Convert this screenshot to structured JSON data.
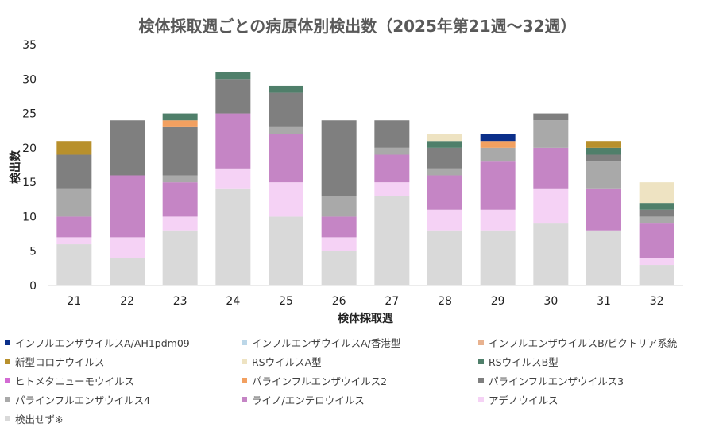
{
  "chart_data": {
    "type": "bar",
    "stacked": true,
    "title": "検体採取週ごとの病原体別検出数（2025年第21週～32週）",
    "xlabel": "検体採取週",
    "ylabel": "検出数",
    "ylim": [
      0,
      35
    ],
    "yticks": [
      0,
      5,
      10,
      15,
      20,
      25,
      30,
      35
    ],
    "grid": false,
    "legend_position": "bottom",
    "categories": [
      "21",
      "22",
      "23",
      "24",
      "25",
      "26",
      "27",
      "28",
      "29",
      "30",
      "31",
      "32"
    ],
    "series": [
      {
        "name": "インフルエンザウイルスA/AH1pdm09",
        "color": "#0b2f8a",
        "values": [
          0,
          0,
          0,
          0,
          0,
          0,
          0,
          0,
          1,
          0,
          0,
          0
        ]
      },
      {
        "name": "インフルエンザウイルスA/香港型",
        "color": "#bcd7e8",
        "values": [
          0,
          0,
          0,
          0,
          0,
          0,
          0,
          0,
          0,
          0,
          0,
          0
        ]
      },
      {
        "name": "インフルエンザウイルスB/ビクトリア系統",
        "color": "#e8b28f",
        "values": [
          0,
          0,
          0,
          0,
          0,
          0,
          0,
          0,
          0,
          0,
          0,
          0
        ]
      },
      {
        "name": "新型コロナウイルス",
        "color": "#b8902c",
        "values": [
          2,
          0,
          0,
          0,
          0,
          0,
          0,
          0,
          0,
          0,
          1,
          0
        ]
      },
      {
        "name": "RSウイルスA型",
        "color": "#eee3c2",
        "values": [
          0,
          0,
          0,
          0,
          0,
          0,
          0,
          1,
          0,
          0,
          0,
          3
        ]
      },
      {
        "name": "RSウイルスB型",
        "color": "#4f7f6a",
        "values": [
          0,
          0,
          1,
          1,
          1,
          0,
          0,
          1,
          0,
          0,
          1,
          1
        ]
      },
      {
        "name": "ヒトメタニューモウイルス",
        "color": "#d36bd3",
        "values": [
          0,
          0,
          0,
          0,
          0,
          0,
          0,
          0,
          0,
          0,
          0,
          0
        ]
      },
      {
        "name": "パラインフルエンザウイルス2",
        "color": "#f2a060",
        "values": [
          0,
          0,
          1,
          0,
          0,
          0,
          0,
          0,
          1,
          0,
          0,
          0
        ]
      },
      {
        "name": "パラインフルエンザウイルス3",
        "color": "#7f7f7f",
        "values": [
          5,
          8,
          7,
          5,
          5,
          11,
          4,
          3,
          0,
          1,
          1,
          1
        ]
      },
      {
        "name": "パラインフルエンザウイルス4",
        "color": "#a9a9a9",
        "values": [
          4,
          0,
          1,
          0,
          1,
          3,
          1,
          1,
          2,
          4,
          4,
          1
        ]
      },
      {
        "name": "ライノ/エンテロウイルス",
        "color": "#c585c5",
        "values": [
          3,
          9,
          5,
          8,
          7,
          3,
          4,
          5,
          7,
          6,
          6,
          5
        ]
      },
      {
        "name": "アデノウイルス",
        "color": "#f5d2f5",
        "values": [
          1,
          3,
          2,
          3,
          5,
          2,
          2,
          3,
          3,
          5,
          0,
          1
        ]
      },
      {
        "name": "検出せず※",
        "color": "#d9d9d9",
        "values": [
          6,
          4,
          8,
          14,
          10,
          5,
          13,
          8,
          8,
          9,
          8,
          3
        ]
      }
    ]
  }
}
